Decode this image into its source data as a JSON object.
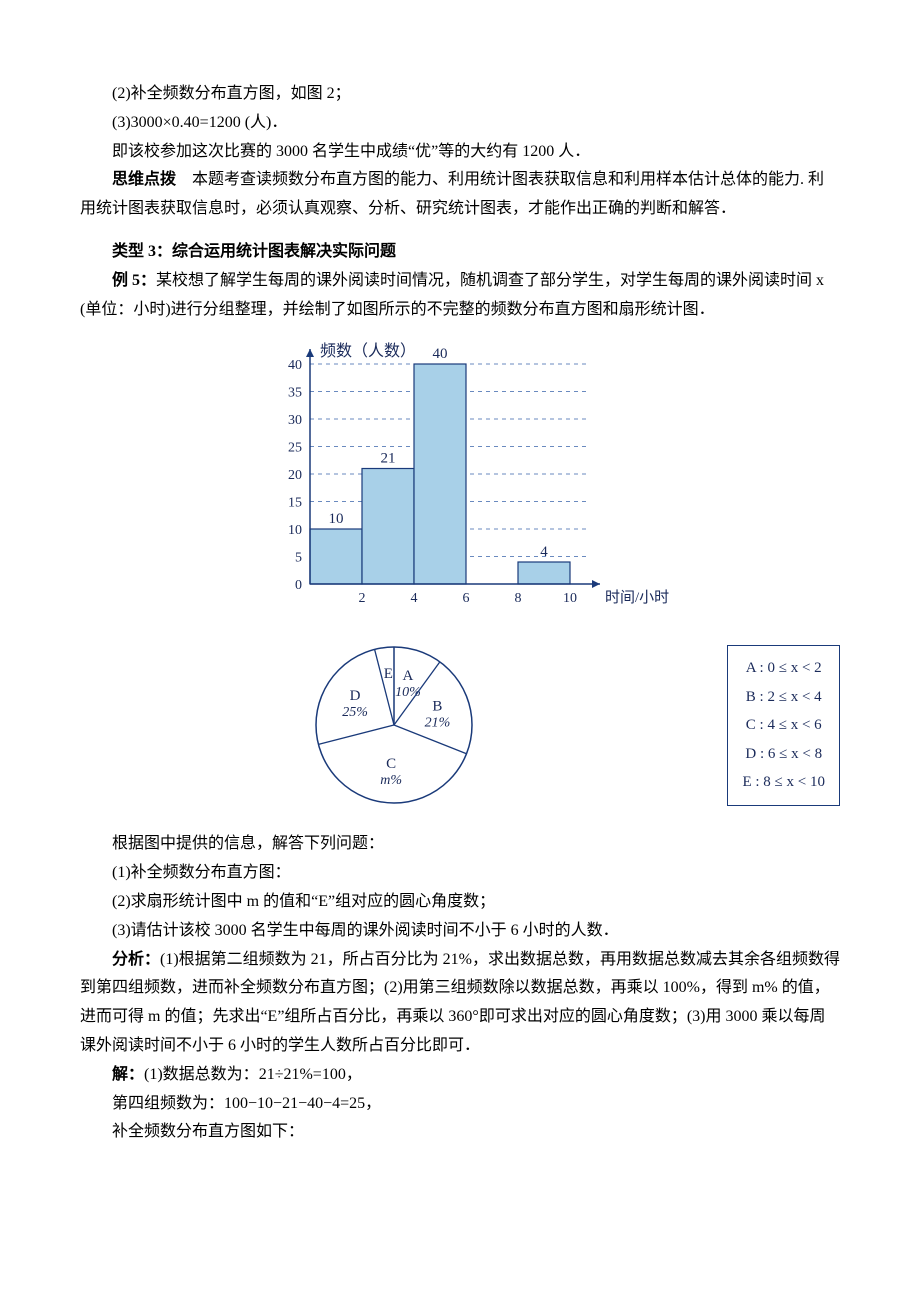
{
  "intro": {
    "line2": "(2)补全频数分布直方图，如图 2；",
    "line3_pre": "(3)",
    "line3_expr": "3000×0.40=1200",
    "line3_post": " (人)．",
    "line4": "即该校参加这次比赛的 3000 名学生中成绩“优”等的大约有 1200 人．",
    "dianbo_label": "思维点拨",
    "dianbo_text": "　本题考查读频数分布直方图的能力、利用统计图表获取信息和利用样本估计总体的能力. 利用统计图表获取信息时，必须认真观察、分析、研究统计图表，才能作出正确的判断和解答．"
  },
  "section3_title": "类型 3：综合运用统计图表解决实际问题",
  "ex5": {
    "label": "例 5：",
    "stem": "某校想了解学生每周的课外阅读时间情况，随机调查了部分学生，对学生每周的课外阅读时间 x (单位：小时)进行分组整理，并绘制了如图所示的不完整的频数分布直方图和扇形统计图．",
    "q_head": "根据图中提供的信息，解答下列问题：",
    "q1": "(1)补全频数分布直方图：",
    "q2": "(2)求扇形统计图中 m 的值和“E”组对应的圆心角度数；",
    "q3": "(3)请估计该校 3000 名学生中每周的课外阅读时间不小于 6 小时的人数．",
    "analysis_label": "分析：",
    "analysis_text": "(1)根据第二组频数为 21，所占百分比为 21%，求出数据总数，再用数据总数减去其余各组频数得到第四组频数，进而补全频数分布直方图；(2)用第三组频数除以数据总数，再乘以 100%，得到 m% 的值，进而可得 m 的值；先求出“E”组所占百分比，再乘以 360°即可求出对应的圆心角度数；(3)用 3000 乘以每周课外阅读时间不小于 6 小时的学生人数所占百分比即可．",
    "solve_label": "解：",
    "solve_l1_a": "(1)数据总数为：",
    "solve_l1_b": "21÷21%=100",
    "solve_l1_c": "，",
    "solve_l2_a": "第四组频数为：",
    "solve_l2_b": "100−10−21−40−4=25",
    "solve_l2_c": "，",
    "solve_l3": "补全频数分布直方图如下："
  },
  "histogram": {
    "title": "频数（人数）",
    "x_axis_label": "时间/小时",
    "y_max": 40,
    "y_ticks": [
      0,
      5,
      10,
      15,
      20,
      25,
      30,
      35,
      40
    ],
    "x_ticks": [
      0,
      2,
      4,
      6,
      8,
      10
    ],
    "bars": [
      {
        "x0": 0,
        "x1": 2,
        "value": 10,
        "label": "10"
      },
      {
        "x0": 2,
        "x1": 4,
        "value": 21,
        "label": "21"
      },
      {
        "x0": 4,
        "x1": 6,
        "value": 40,
        "label": "40"
      },
      {
        "x0": 6,
        "x1": 8,
        "value": null,
        "label": ""
      },
      {
        "x0": 8,
        "x1": 10,
        "value": 4,
        "label": "4"
      }
    ],
    "bar_fill": "#a8d0e8",
    "bar_stroke": "#1a3a7a",
    "axis_color": "#1a3a7a",
    "grid_color": "#6a8abf",
    "text_color": "#1a2a5a"
  },
  "pie": {
    "slices": [
      {
        "name": "A",
        "pct": 10,
        "label": "A",
        "sub": "10%"
      },
      {
        "name": "B",
        "pct": 21,
        "label": "B",
        "sub": "21%"
      },
      {
        "name": "C",
        "pct": 40,
        "label": "C",
        "sub": "m%"
      },
      {
        "name": "D",
        "pct": 25,
        "label": "D",
        "sub": "25%"
      },
      {
        "name": "E",
        "pct": 4,
        "label": "E",
        "sub": ""
      }
    ],
    "circle_fill": "#ffffff",
    "circle_stroke": "#1a3a7a",
    "text_color": "#1a2a5a"
  },
  "legend": {
    "items": [
      "A : 0 ≤ x < 2",
      "B : 2 ≤ x < 4",
      "C : 4 ≤ x < 6",
      "D : 6 ≤ x < 8",
      "E : 8 ≤ x < 10"
    ]
  }
}
